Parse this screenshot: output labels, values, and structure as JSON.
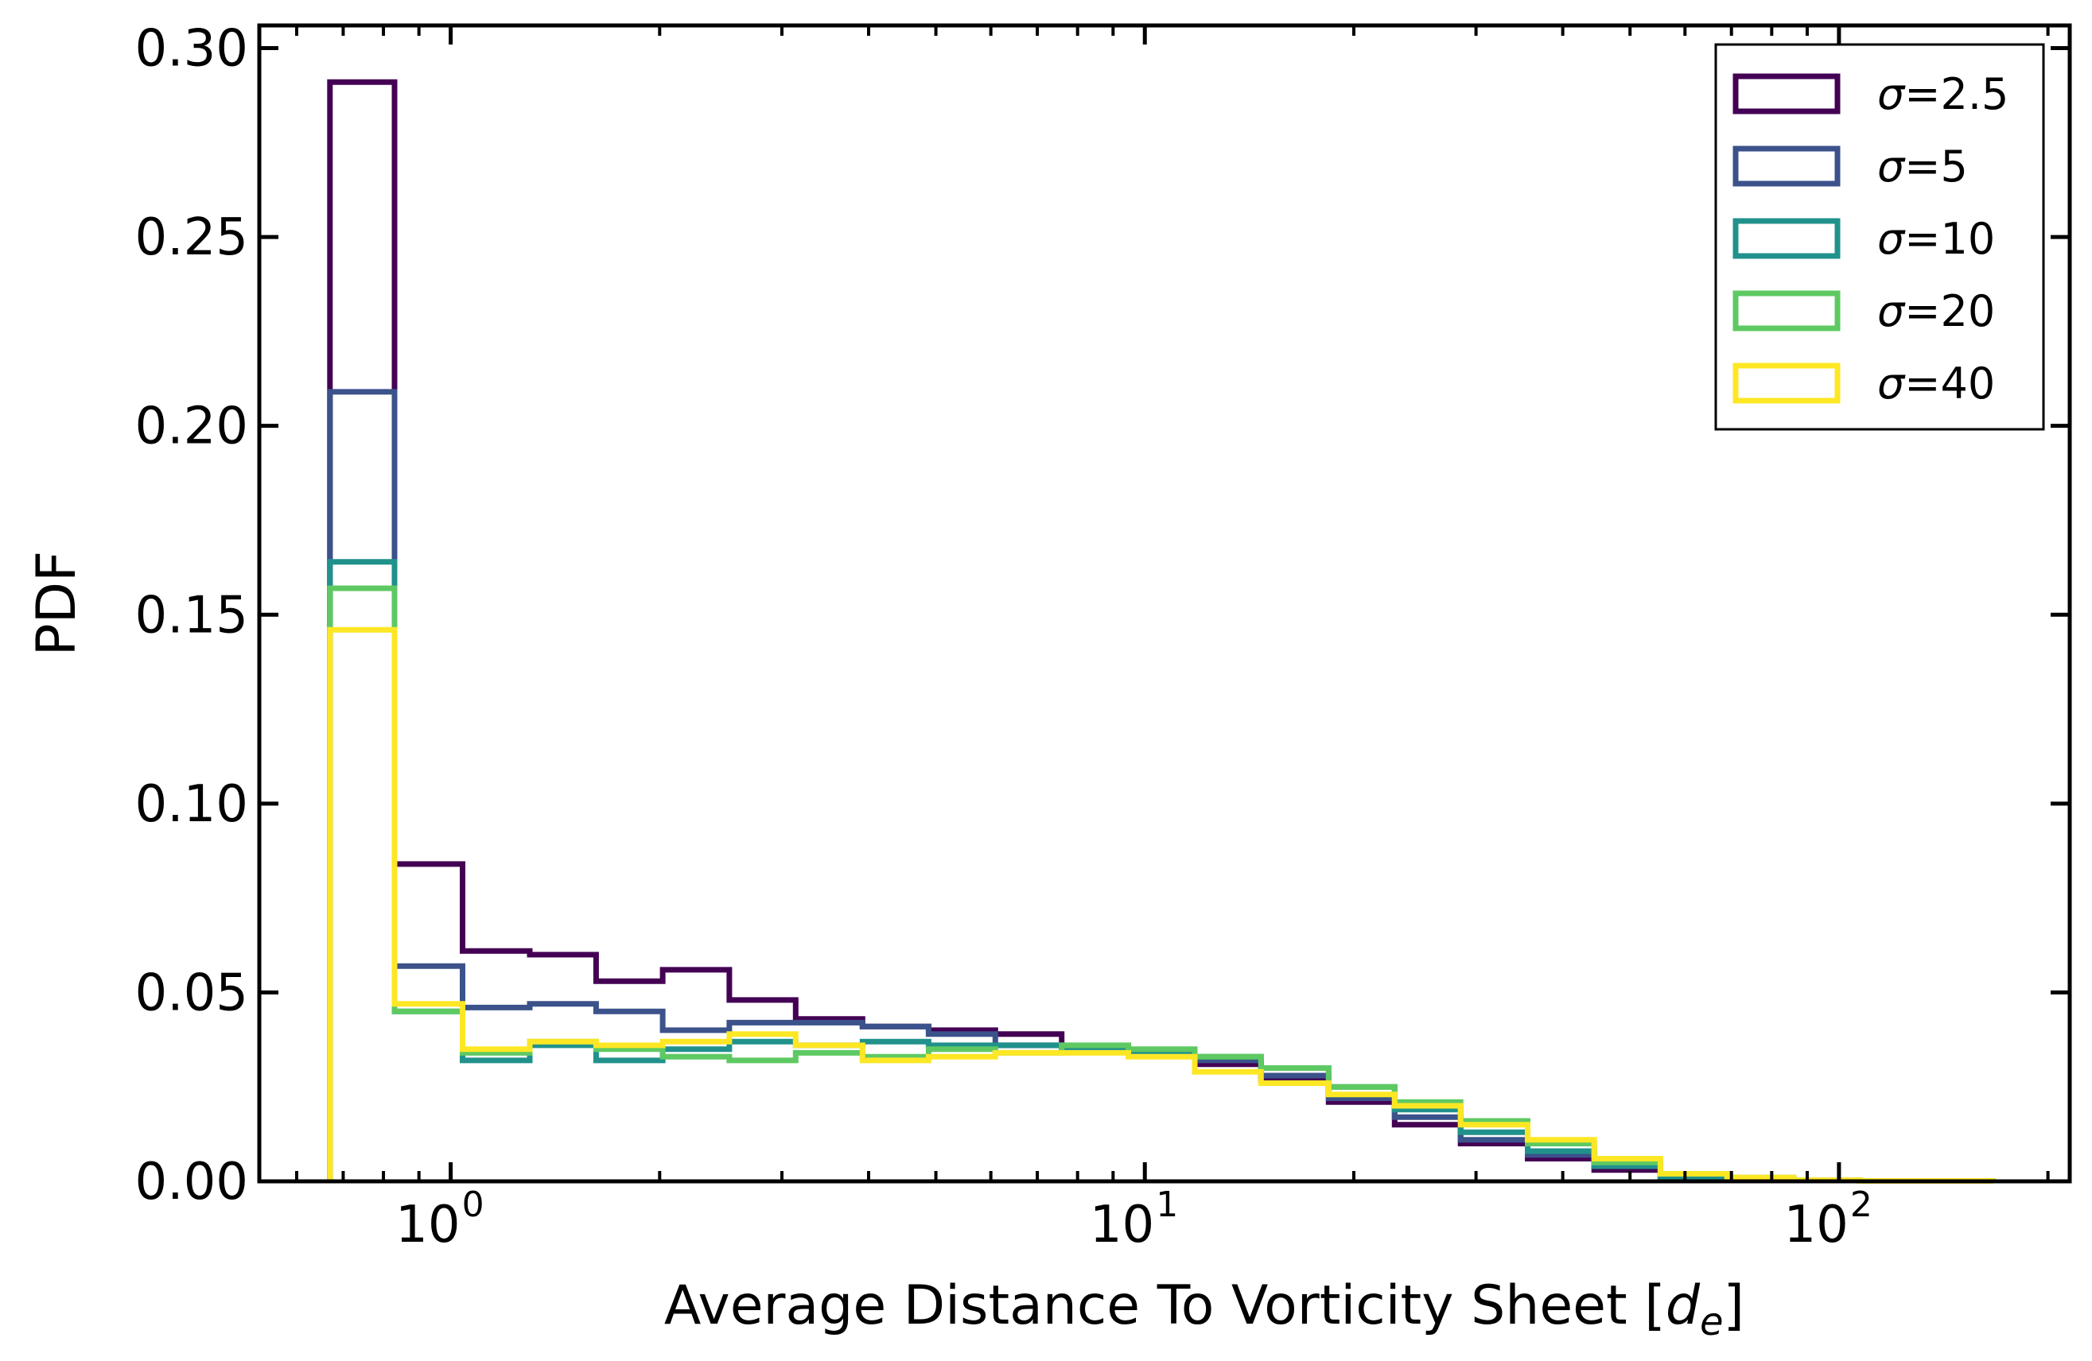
{
  "chart_data": {
    "type": "histogram-step",
    "xscale": "log",
    "xlabel_text": "Average Distance To Vorticity Sheet [",
    "xlabel_symbol": "d",
    "xlabel_subscript": "e",
    "xlabel_close": "]",
    "ylabel": "PDF",
    "xlim": [
      0.53,
      215
    ],
    "ylim": [
      0,
      0.306
    ],
    "yticks": [
      {
        "value": 0.0,
        "label": "0.00"
      },
      {
        "value": 0.05,
        "label": "0.05"
      },
      {
        "value": 0.1,
        "label": "0.10"
      },
      {
        "value": 0.15,
        "label": "0.15"
      },
      {
        "value": 0.2,
        "label": "0.20"
      },
      {
        "value": 0.25,
        "label": "0.25"
      },
      {
        "value": 0.3,
        "label": "0.30"
      }
    ],
    "xticks": [
      {
        "value": 1,
        "base": "10",
        "exp": "0"
      },
      {
        "value": 10,
        "base": "10",
        "exp": "1"
      },
      {
        "value": 100,
        "base": "10",
        "exp": "2"
      }
    ],
    "bin_edges": [
      0.67,
      0.83,
      1.04,
      1.3,
      1.62,
      2.02,
      2.52,
      3.14,
      3.92,
      4.88,
      6.09,
      7.59,
      9.47,
      11.8,
      14.7,
      18.4,
      22.9,
      28.5,
      35.6,
      44.4,
      55.3,
      69.0,
      86.0,
      107.2,
      133.6,
      166.6
    ],
    "legend": {
      "location": "upper right",
      "symbol": "σ"
    },
    "series": [
      {
        "name": "σ=2.5",
        "label_value": "=2.5",
        "color": "#440154",
        "values": [
          0.291,
          0.084,
          0.061,
          0.06,
          0.053,
          0.056,
          0.048,
          0.043,
          0.041,
          0.04,
          0.039,
          0.035,
          0.034,
          0.031,
          0.027,
          0.021,
          0.015,
          0.01,
          0.006,
          0.003,
          0.001,
          0.0005,
          0.0002,
          0.0001,
          0.0001
        ]
      },
      {
        "name": "σ=5",
        "label_value": "=5",
        "color": "#3b528b",
        "values": [
          0.209,
          0.057,
          0.046,
          0.047,
          0.045,
          0.04,
          0.042,
          0.042,
          0.041,
          0.039,
          0.036,
          0.035,
          0.034,
          0.032,
          0.028,
          0.022,
          0.017,
          0.011,
          0.007,
          0.004,
          0.0015,
          0.0008,
          0.0002,
          0.0001,
          0.0001
        ]
      },
      {
        "name": "σ=10",
        "label_value": "=10",
        "color": "#21918c",
        "values": [
          0.164,
          0.045,
          0.032,
          0.036,
          0.032,
          0.035,
          0.037,
          0.036,
          0.037,
          0.036,
          0.036,
          0.035,
          0.034,
          0.033,
          0.03,
          0.025,
          0.019,
          0.013,
          0.008,
          0.004,
          0.001,
          0.0006,
          0.0002,
          0.0001,
          0.0001
        ]
      },
      {
        "name": "σ=20",
        "label_value": "=20",
        "color": "#5ec962",
        "values": [
          0.157,
          0.045,
          0.034,
          0.037,
          0.035,
          0.033,
          0.032,
          0.034,
          0.033,
          0.035,
          0.034,
          0.036,
          0.035,
          0.033,
          0.03,
          0.025,
          0.021,
          0.016,
          0.01,
          0.005,
          0.002,
          0.001,
          0.0003,
          0.0001,
          0.0001
        ]
      },
      {
        "name": "σ=40",
        "label_value": "=40",
        "color": "#fde725",
        "values": [
          0.146,
          0.047,
          0.035,
          0.037,
          0.036,
          0.037,
          0.039,
          0.036,
          0.032,
          0.033,
          0.034,
          0.034,
          0.033,
          0.029,
          0.026,
          0.023,
          0.02,
          0.015,
          0.011,
          0.006,
          0.002,
          0.001,
          0.0003,
          0.0001,
          0.0001
        ]
      }
    ]
  }
}
